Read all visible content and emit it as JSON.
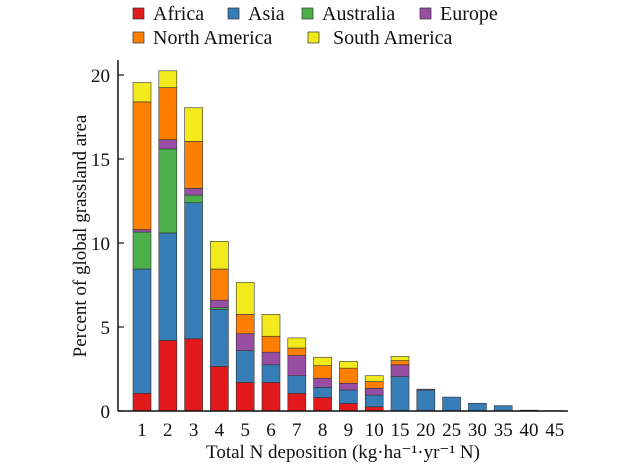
{
  "chart_data": {
    "type": "bar",
    "stacked": true,
    "title": "",
    "xlabel": "Total N deposition (kg·ha⁻¹·yr⁻¹ N)",
    "ylabel": "Percent of global grassland area",
    "ylim": [
      0,
      21
    ],
    "yticks": [
      0,
      5,
      10,
      15,
      20
    ],
    "grid": false,
    "legend_position": "top",
    "categories": [
      "1",
      "2",
      "3",
      "4",
      "5",
      "6",
      "7",
      "8",
      "9",
      "10",
      "15",
      "20",
      "25",
      "30",
      "35",
      "40",
      "45"
    ],
    "series": [
      {
        "name": "Africa",
        "color": "#e31a1c",
        "values": [
          1.05,
          4.2,
          4.3,
          2.65,
          1.7,
          1.7,
          1.05,
          0.8,
          0.45,
          0.25,
          0,
          0,
          0,
          0,
          0,
          0,
          0
        ]
      },
      {
        "name": "Asia",
        "color": "#377eb8",
        "values": [
          7.4,
          6.4,
          8.1,
          3.4,
          1.9,
          1.05,
          1.05,
          0.6,
          0.8,
          0.7,
          2.05,
          1.25,
          0.83,
          0.46,
          0.32,
          0.05,
          0.02
        ]
      },
      {
        "name": "Australia",
        "color": "#4daf4a",
        "values": [
          2.2,
          5.0,
          0.45,
          0.1,
          0,
          0,
          0,
          0,
          0,
          0,
          0,
          0,
          0,
          0,
          0,
          0,
          0
        ]
      },
      {
        "name": "Europe",
        "color": "#984ea3",
        "values": [
          0.15,
          0.55,
          0.4,
          0.45,
          1.0,
          0.75,
          1.2,
          0.55,
          0.4,
          0.4,
          0.7,
          0.05,
          0,
          0,
          0,
          0,
          0
        ]
      },
      {
        "name": "North America",
        "color": "#ff7f00",
        "values": [
          7.6,
          3.1,
          2.8,
          1.85,
          1.15,
          0.95,
          0.45,
          0.75,
          0.9,
          0.4,
          0.25,
          0,
          0,
          0,
          0,
          0,
          0
        ]
      },
      {
        "name": "South America",
        "color": "#f2ea1d",
        "values": [
          1.15,
          1.0,
          2.0,
          1.65,
          1.9,
          1.3,
          0.6,
          0.5,
          0.4,
          0.35,
          0.25,
          0,
          0,
          0,
          0,
          0,
          0
        ]
      }
    ]
  }
}
